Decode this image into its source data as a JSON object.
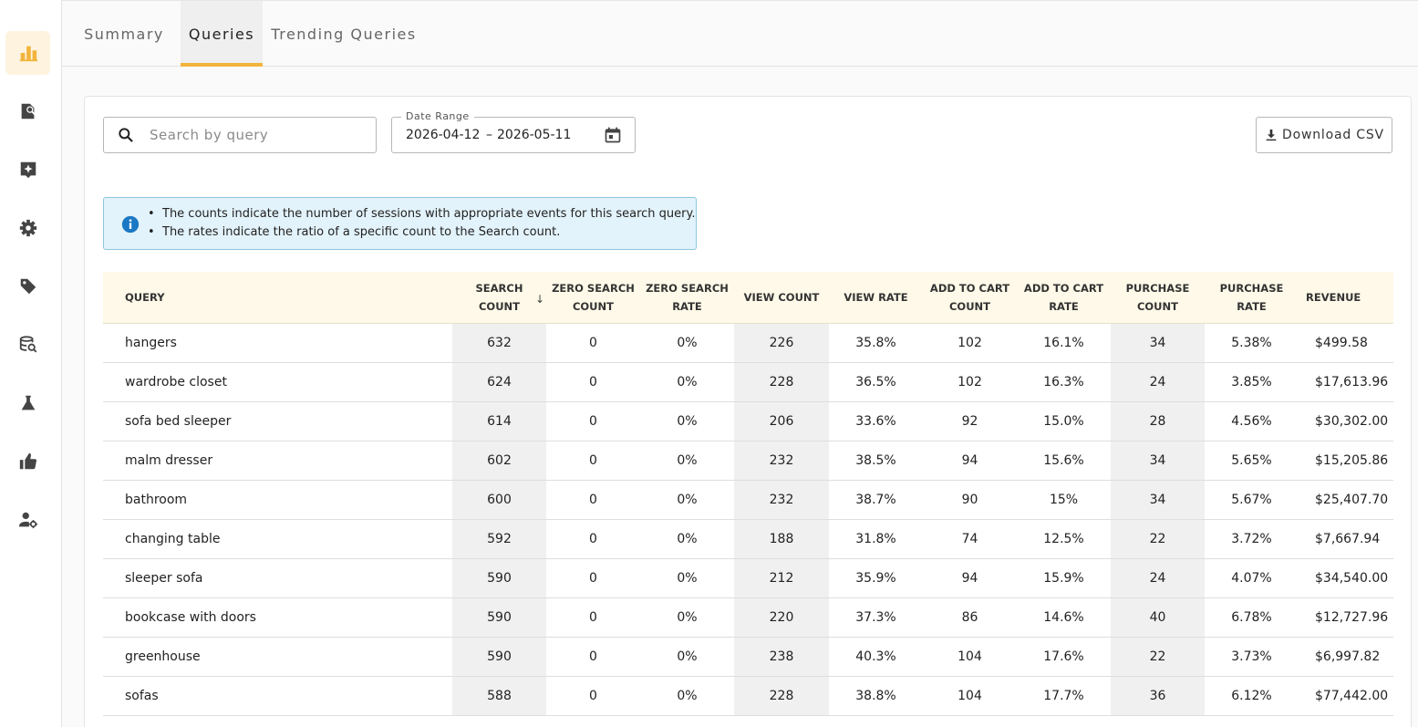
{
  "tabs": [
    {
      "label": "Summary",
      "active": false
    },
    {
      "label": "Queries",
      "active": true
    },
    {
      "label": "Trending Queries",
      "active": false
    }
  ],
  "sidebar": {
    "items": [
      {
        "icon": "bar-chart-icon",
        "active": true
      },
      {
        "icon": "document-search-icon",
        "active": false
      },
      {
        "icon": "sparkle-box-icon",
        "active": false
      },
      {
        "icon": "gear-icon",
        "active": false
      },
      {
        "icon": "tag-icon",
        "active": false
      },
      {
        "icon": "database-search-icon",
        "active": false
      },
      {
        "icon": "flask-icon",
        "active": false
      },
      {
        "icon": "thumbs-up-icon",
        "active": false
      },
      {
        "icon": "user-settings-icon",
        "active": false
      }
    ],
    "accent_color": "#f2b43c"
  },
  "search": {
    "placeholder": "Search by query",
    "value": ""
  },
  "date_range": {
    "label": "Date Range",
    "start": "2026-04-12",
    "separator": "–",
    "end": "2026-05-11"
  },
  "download": {
    "label": "Download CSV"
  },
  "info": {
    "lines": [
      "The counts indicate the number of sessions with appropriate events for this search query.",
      "The rates indicate the ratio of a specific count to the Search count."
    ]
  },
  "table": {
    "headers": [
      [
        "QUERY"
      ],
      [
        "SEARCH",
        "COUNT"
      ],
      [
        "ZERO SEARCH",
        "COUNT"
      ],
      [
        "ZERO SEARCH",
        "RATE"
      ],
      [
        "VIEW COUNT"
      ],
      [
        "VIEW RATE"
      ],
      [
        "ADD TO CART",
        "COUNT"
      ],
      [
        "ADD TO CART",
        "RATE"
      ],
      [
        "PURCHASE",
        "COUNT"
      ],
      [
        "PURCHASE",
        "RATE"
      ],
      [
        "REVENUE"
      ]
    ],
    "sort_indicator": "↓",
    "rows": [
      [
        "hangers",
        "632",
        "0",
        "0%",
        "226",
        "35.8%",
        "102",
        "16.1%",
        "34",
        "5.38%",
        "$499.58"
      ],
      [
        "wardrobe closet",
        "624",
        "0",
        "0%",
        "228",
        "36.5%",
        "102",
        "16.3%",
        "24",
        "3.85%",
        "$17,613.96"
      ],
      [
        "sofa bed sleeper",
        "614",
        "0",
        "0%",
        "206",
        "33.6%",
        "92",
        "15.0%",
        "28",
        "4.56%",
        "$30,302.00"
      ],
      [
        "malm dresser",
        "602",
        "0",
        "0%",
        "232",
        "38.5%",
        "94",
        "15.6%",
        "34",
        "5.65%",
        "$15,205.86"
      ],
      [
        "bathroom",
        "600",
        "0",
        "0%",
        "232",
        "38.7%",
        "90",
        "15%",
        "34",
        "5.67%",
        "$25,407.70"
      ],
      [
        "changing table",
        "592",
        "0",
        "0%",
        "188",
        "31.8%",
        "74",
        "12.5%",
        "22",
        "3.72%",
        "$7,667.94"
      ],
      [
        "sleeper sofa",
        "590",
        "0",
        "0%",
        "212",
        "35.9%",
        "94",
        "15.9%",
        "24",
        "4.07%",
        "$34,540.00"
      ],
      [
        "bookcase with doors",
        "590",
        "0",
        "0%",
        "220",
        "37.3%",
        "86",
        "14.6%",
        "40",
        "6.78%",
        "$12,727.96"
      ],
      [
        "greenhouse",
        "590",
        "0",
        "0%",
        "238",
        "40.3%",
        "104",
        "17.6%",
        "22",
        "3.73%",
        "$6,997.82"
      ],
      [
        "sofas",
        "588",
        "0",
        "0%",
        "228",
        "38.8%",
        "104",
        "17.7%",
        "36",
        "6.12%",
        "$77,442.00"
      ]
    ]
  }
}
